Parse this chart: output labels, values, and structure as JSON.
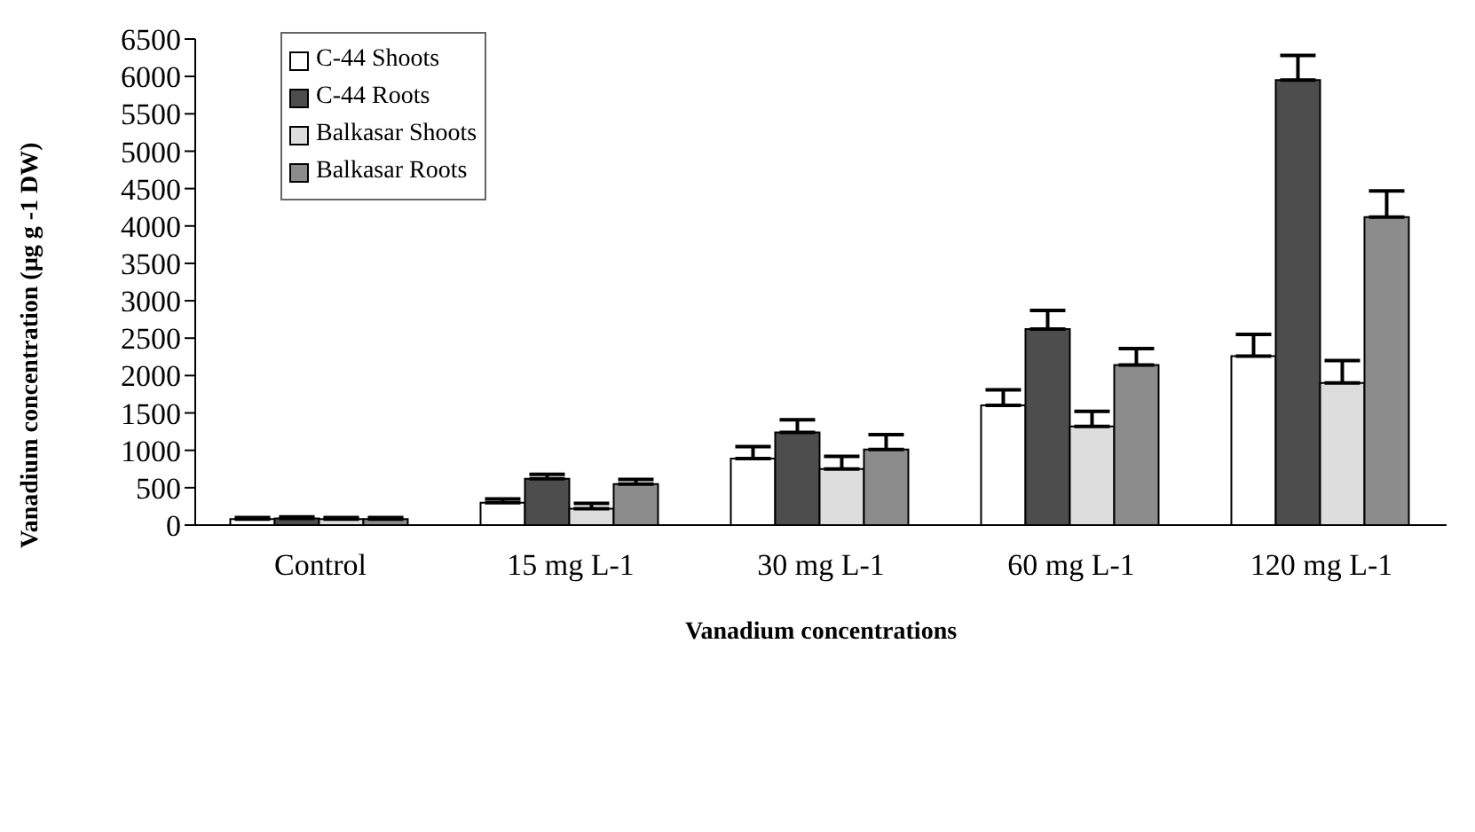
{
  "chart_data": {
    "type": "bar",
    "xlabel": "Vanadium concentrations",
    "ylabel": "Vanadium concentration (µg g -1 DW)",
    "categories": [
      "Control",
      "15 mg L-1",
      "30 mg L-1",
      "60 mg L-1",
      "120 mg L-1"
    ],
    "series": [
      {
        "name": "C-44 Shoots",
        "color": "#ffffff",
        "values": [
          80,
          300,
          890,
          1600,
          2260
        ],
        "errors": [
          20,
          50,
          160,
          210,
          290
        ]
      },
      {
        "name": "C-44 Roots",
        "color": "#4d4d4d",
        "values": [
          90,
          620,
          1240,
          2620,
          5950
        ],
        "errors": [
          20,
          60,
          170,
          250,
          330
        ]
      },
      {
        "name": "Balkasar Shoots",
        "color": "#dddddd",
        "values": [
          80,
          220,
          750,
          1320,
          1900
        ],
        "errors": [
          20,
          70,
          170,
          200,
          300
        ]
      },
      {
        "name": "Balkasar Roots",
        "color": "#8c8c8c",
        "values": [
          80,
          550,
          1010,
          2140,
          4120
        ],
        "errors": [
          20,
          60,
          200,
          220,
          350
        ]
      }
    ],
    "ylim": [
      0,
      6500
    ],
    "yticks": [
      0,
      500,
      1000,
      1500,
      2000,
      2500,
      3000,
      3500,
      4000,
      4500,
      5000,
      5500,
      6000,
      6500
    ],
    "grid": false,
    "legend": "top left"
  }
}
